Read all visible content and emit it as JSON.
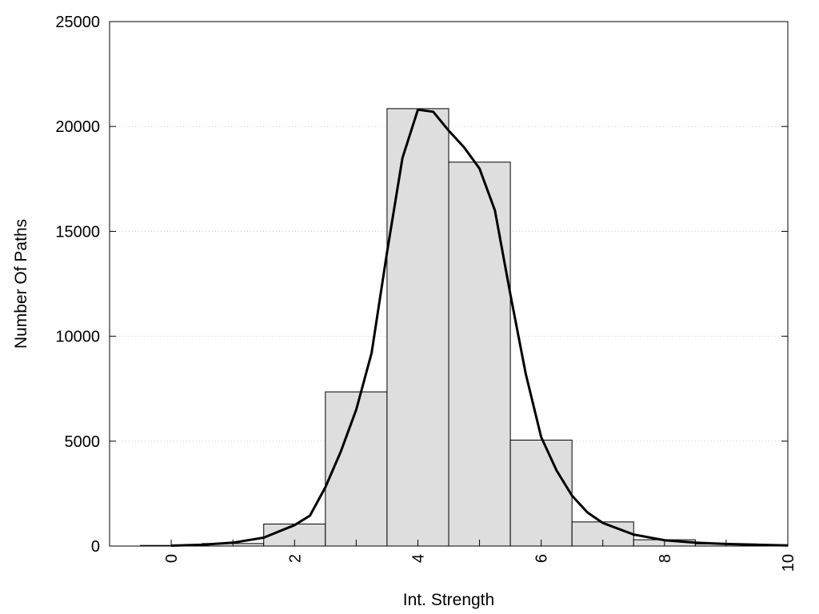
{
  "chart_data": {
    "type": "bar",
    "title": "",
    "xlabel": "Int. Strength",
    "ylabel": "Number Of Paths",
    "xlim": [
      -1,
      10
    ],
    "ylim": [
      0,
      25000
    ],
    "xticks": [
      0,
      2,
      4,
      6,
      8,
      10
    ],
    "yticks": [
      0,
      5000,
      10000,
      15000,
      20000,
      25000
    ],
    "grid": "horizontal dotted",
    "bin_width": 1,
    "bins": [
      {
        "x": 0,
        "value": 30
      },
      {
        "x": 1,
        "value": 120
      },
      {
        "x": 2,
        "value": 1050
      },
      {
        "x": 3,
        "value": 7350
      },
      {
        "x": 4,
        "value": 20850
      },
      {
        "x": 5,
        "value": 18300
      },
      {
        "x": 6,
        "value": 5050
      },
      {
        "x": 7,
        "value": 1150
      },
      {
        "x": 8,
        "value": 300
      },
      {
        "x": 9,
        "value": 100
      }
    ],
    "curve": {
      "type": "line",
      "points": [
        [
          0,
          20
        ],
        [
          0.5,
          60
        ],
        [
          1,
          160
        ],
        [
          1.5,
          400
        ],
        [
          2,
          1000
        ],
        [
          2.25,
          1450
        ],
        [
          2.5,
          2800
        ],
        [
          2.75,
          4500
        ],
        [
          3,
          6500
        ],
        [
          3.25,
          9200
        ],
        [
          3.5,
          14000
        ],
        [
          3.75,
          18500
        ],
        [
          4,
          20800
        ],
        [
          4.25,
          20700
        ],
        [
          4.5,
          19800
        ],
        [
          4.75,
          19000
        ],
        [
          5,
          18000
        ],
        [
          5.25,
          16000
        ],
        [
          5.5,
          12000
        ],
        [
          5.75,
          8200
        ],
        [
          6,
          5200
        ],
        [
          6.25,
          3600
        ],
        [
          6.5,
          2400
        ],
        [
          6.75,
          1600
        ],
        [
          7,
          1100
        ],
        [
          7.5,
          550
        ],
        [
          8,
          280
        ],
        [
          8.5,
          160
        ],
        [
          9,
          100
        ],
        [
          9.5,
          60
        ],
        [
          10,
          30
        ]
      ]
    }
  }
}
